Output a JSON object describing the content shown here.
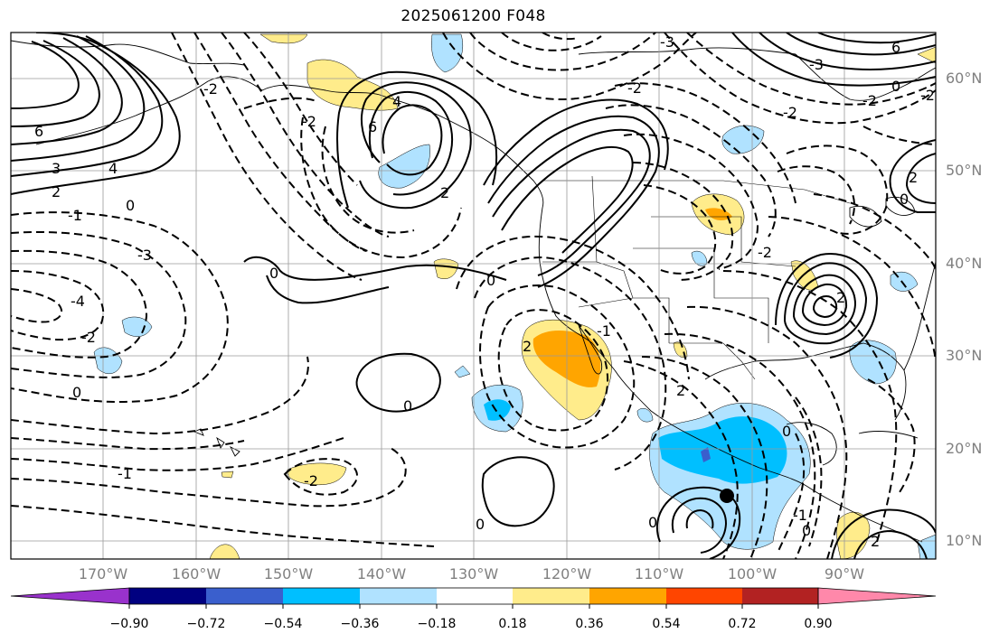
{
  "title": "2025061200 F048",
  "lat_labels": [
    "60°N",
    "50°N",
    "40°N",
    "30°N",
    "20°N",
    "10°N"
  ],
  "lon_labels": [
    "170°W",
    "160°W",
    "150°W",
    "140°W",
    "130°W",
    "120°W",
    "110°W",
    "100°W",
    "90°W"
  ],
  "contour_labels": {
    "c6a": "6",
    "c3a": "3",
    "c4a": "4",
    "c2a": "2",
    "c0a": "0",
    "c1a": "-1",
    "c3b": "-3",
    "c4b": "-4",
    "c2b": "-2",
    "c0b": "0",
    "c4c": "4",
    "c6b": "6",
    "c2c": "2",
    "c0c": "0",
    "c0d": "0",
    "c0e": "0",
    "c2d": "-2",
    "c1b": "-1",
    "c2e": "-2",
    "c2f": "2",
    "c1c": "-1",
    "c2g": "2",
    "c0f": "0",
    "c2h": "-2",
    "c2i": "2",
    "c0g": "0",
    "c0h": "0",
    "c2j": "-2",
    "c3c": "-3",
    "c2k": "-2",
    "c0i": "0",
    "c2l": "-2",
    "c6c": "6",
    "c0j": "0",
    "c1d": "-1",
    "c2m": "2",
    "c2n": "-2",
    "c0k": "0",
    "c2o": "-2",
    "c3d": "-3",
    "c2p": "2"
  },
  "colorbar": {
    "ticks": [
      "−0.90",
      "−0.72",
      "−0.54",
      "−0.36",
      "−0.18",
      "0.18",
      "0.36",
      "0.54",
      "0.72",
      "0.90"
    ],
    "colors": [
      "#9932cc",
      "#000080",
      "#3a5fcd",
      "#00bfff",
      "#b0e2ff",
      "#ffffff",
      "#ffec8b",
      "#ffa500",
      "#ff4500",
      "#b22222",
      "#ff88aa"
    ]
  }
}
